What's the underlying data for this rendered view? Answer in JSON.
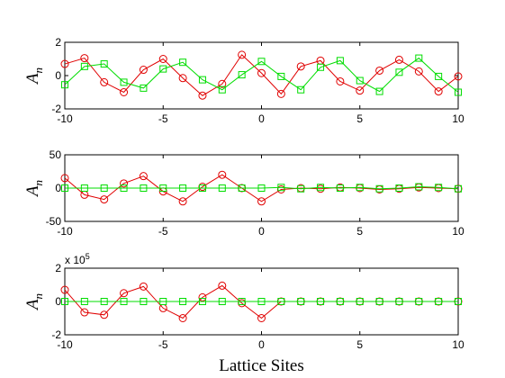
{
  "chart_data": [
    {
      "type": "line",
      "ylabel": "A",
      "ylabel_sub": "n",
      "x": [
        -10,
        -9,
        -8,
        -7,
        -6,
        -5,
        -4,
        -3,
        -2,
        -1,
        0,
        1,
        2,
        3,
        4,
        5,
        6,
        7,
        8,
        9,
        10
      ],
      "xlim": [
        -10,
        10
      ],
      "xticks": [
        -10,
        -5,
        0,
        5,
        10
      ],
      "ylim": [
        -2,
        2
      ],
      "yticks": [
        -2,
        0,
        2
      ],
      "series": [
        {
          "color": "#e00000",
          "marker": "circle",
          "values": [
            0.7,
            1.05,
            -0.4,
            -1.0,
            0.35,
            1.0,
            -0.15,
            -1.2,
            -0.5,
            1.25,
            0.15,
            -1.1,
            0.55,
            0.9,
            -0.35,
            -0.9,
            0.3,
            0.95,
            0.25,
            -0.95,
            -0.05
          ]
        },
        {
          "color": "#00dd00",
          "marker": "square",
          "values": [
            -0.55,
            0.55,
            0.7,
            -0.4,
            -0.75,
            0.4,
            0.8,
            -0.25,
            -0.85,
            0.05,
            0.85,
            -0.05,
            -0.85,
            0.5,
            0.9,
            -0.3,
            -0.95,
            0.2,
            1.05,
            -0.05,
            -1.0
          ]
        }
      ]
    },
    {
      "type": "line",
      "ylabel": "A",
      "ylabel_sub": "n",
      "x": [
        -10,
        -9,
        -8,
        -7,
        -6,
        -5,
        -4,
        -3,
        -2,
        -1,
        0,
        1,
        2,
        3,
        4,
        5,
        6,
        7,
        8,
        9,
        10
      ],
      "xlim": [
        -10,
        10
      ],
      "xticks": [
        -10,
        -5,
        0,
        5,
        10
      ],
      "ylim": [
        -50,
        50
      ],
      "yticks": [
        -50,
        0,
        50
      ],
      "series": [
        {
          "color": "#e00000",
          "marker": "circle",
          "values": [
            15,
            -10,
            -17,
            7,
            18,
            -5,
            -20,
            2,
            20,
            0,
            -20,
            -2,
            0,
            -1,
            1,
            0,
            -2,
            -1,
            1,
            0,
            -1
          ]
        },
        {
          "color": "#00dd00",
          "marker": "square",
          "values": [
            0,
            0,
            0,
            0,
            0,
            0,
            0,
            0,
            0,
            0,
            0,
            1,
            -1,
            1,
            0,
            1,
            -1,
            0,
            2,
            1,
            -1
          ]
        }
      ]
    },
    {
      "type": "line",
      "ylabel": "A",
      "ylabel_sub": "n",
      "xlabel": "Lattice Sites",
      "multiplier": "x 10",
      "multiplier_exp": "5",
      "x": [
        -10,
        -9,
        -8,
        -7,
        -6,
        -5,
        -4,
        -3,
        -2,
        -1,
        0,
        1,
        2,
        3,
        4,
        5,
        6,
        7,
        8,
        9,
        10
      ],
      "xlim": [
        -10,
        10
      ],
      "xticks": [
        -10,
        -5,
        0,
        5,
        10
      ],
      "ylim": [
        -2,
        2
      ],
      "yticks": [
        -2,
        0,
        2
      ],
      "series": [
        {
          "color": "#e00000",
          "marker": "circle",
          "values": [
            0.7,
            -0.65,
            -0.8,
            0.5,
            0.9,
            -0.4,
            -1.0,
            0.25,
            0.95,
            -0.1,
            -1.0,
            0,
            0,
            0,
            0,
            0,
            0,
            0,
            0,
            0,
            0
          ]
        },
        {
          "color": "#00dd00",
          "marker": "square",
          "values": [
            0,
            0,
            0,
            0,
            0,
            0,
            0,
            0,
            0,
            0,
            0,
            0,
            0,
            0,
            0,
            0,
            0,
            0,
            0,
            0,
            0
          ]
        }
      ]
    }
  ]
}
